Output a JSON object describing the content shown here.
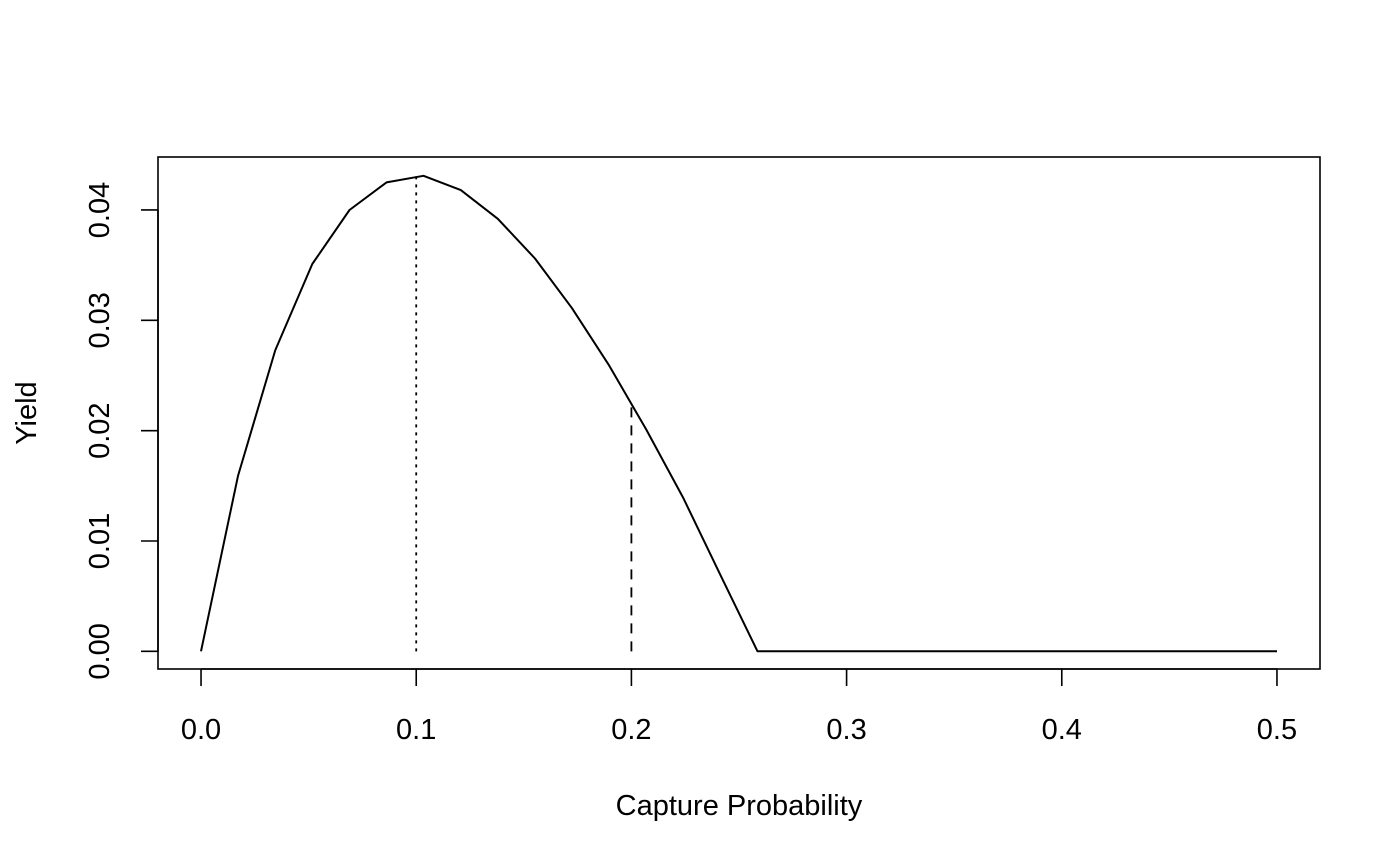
{
  "chart_data": {
    "type": "line",
    "title": "",
    "xlabel": "Capture Probability",
    "ylabel": "Yield",
    "xlim": [
      -0.02,
      0.52
    ],
    "ylim": [
      -0.0016,
      0.0448
    ],
    "x_ticks": [
      0.0,
      0.1,
      0.2,
      0.3,
      0.4,
      0.5
    ],
    "x_tick_labels": [
      "0.0",
      "0.1",
      "0.2",
      "0.3",
      "0.4",
      "0.5"
    ],
    "y_ticks": [
      0.0,
      0.01,
      0.02,
      0.03,
      0.04
    ],
    "y_tick_labels": [
      "0.00",
      "0.01",
      "0.02",
      "0.03",
      "0.04"
    ],
    "grid": false,
    "legend": "none",
    "series": [
      {
        "style": "solid",
        "color": "#000000",
        "points": [
          [
            0.0,
            0.0
          ],
          [
            0.0172,
            0.0159
          ],
          [
            0.0345,
            0.0273
          ],
          [
            0.0517,
            0.0351
          ],
          [
            0.069,
            0.04
          ],
          [
            0.0862,
            0.0425
          ],
          [
            0.1034,
            0.0431
          ],
          [
            0.1207,
            0.0418
          ],
          [
            0.1379,
            0.0392
          ],
          [
            0.1552,
            0.0356
          ],
          [
            0.1724,
            0.0311
          ],
          [
            0.1897,
            0.0259
          ],
          [
            0.2069,
            0.0201
          ],
          [
            0.2241,
            0.0139
          ],
          [
            0.2414,
            0.0069
          ],
          [
            0.2586,
            0.0
          ],
          [
            0.2759,
            0.0
          ],
          [
            0.3,
            0.0
          ],
          [
            0.4,
            0.0
          ],
          [
            0.5,
            0.0
          ]
        ]
      }
    ],
    "reference_lines": [
      {
        "style": "dotted",
        "x": 0.1,
        "y_from": 0.0,
        "y_to": 0.0431
      },
      {
        "style": "dashed",
        "x": 0.2,
        "y_from": 0.0,
        "y_to": 0.0224
      }
    ]
  }
}
